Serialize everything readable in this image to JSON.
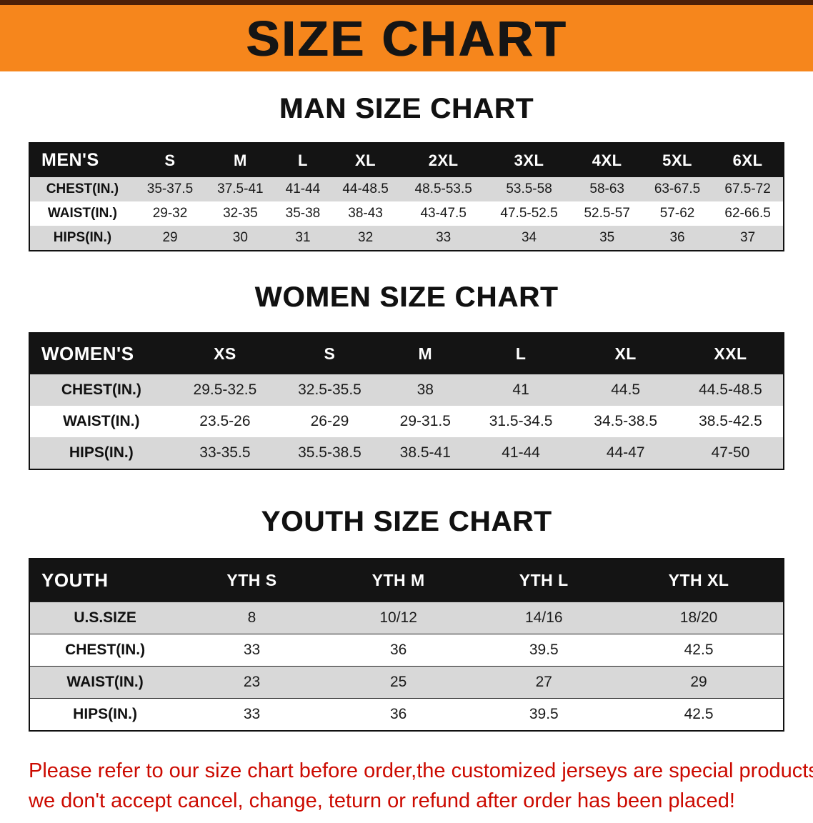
{
  "banner": {
    "title": "SIZE CHART"
  },
  "sections": [
    {
      "heading": "MAN SIZE CHART",
      "table": {
        "header": [
          "MEN'S",
          "S",
          "M",
          "L",
          "XL",
          "2XL",
          "3XL",
          "4XL",
          "5XL",
          "6XL"
        ],
        "rows": [
          [
            "CHEST(IN.)",
            "35-37.5",
            "37.5-41",
            "41-44",
            "44-48.5",
            "48.5-53.5",
            "53.5-58",
            "58-63",
            "63-67.5",
            "67.5-72"
          ],
          [
            "WAIST(IN.)",
            "29-32",
            "32-35",
            "35-38",
            "38-43",
            "43-47.5",
            "47.5-52.5",
            "52.5-57",
            "57-62",
            "62-66.5"
          ],
          [
            "HIPS(IN.)",
            "29",
            "30",
            "31",
            "32",
            "33",
            "34",
            "35",
            "36",
            "37"
          ]
        ]
      }
    },
    {
      "heading": "WOMEN SIZE CHART",
      "table": {
        "header": [
          "WOMEN'S",
          "XS",
          "S",
          "M",
          "L",
          "XL",
          "XXL"
        ],
        "rows": [
          [
            "CHEST(IN.)",
            "29.5-32.5",
            "32.5-35.5",
            "38",
            "41",
            "44.5",
            "44.5-48.5"
          ],
          [
            "WAIST(IN.)",
            "23.5-26",
            "26-29",
            "29-31.5",
            "31.5-34.5",
            "34.5-38.5",
            "38.5-42.5"
          ],
          [
            "HIPS(IN.)",
            "33-35.5",
            "35.5-38.5",
            "38.5-41",
            "41-44",
            "44-47",
            "47-50"
          ]
        ]
      }
    },
    {
      "heading": "YOUTH SIZE CHART",
      "table": {
        "header": [
          "YOUTH",
          "YTH S",
          "YTH M",
          "YTH L",
          "YTH XL"
        ],
        "rows": [
          [
            "U.S.SIZE",
            "8",
            "10/12",
            "14/16",
            "18/20"
          ],
          [
            "CHEST(IN.)",
            "33",
            "36",
            "39.5",
            "42.5"
          ],
          [
            "WAIST(IN.)",
            "23",
            "25",
            "27",
            "29"
          ],
          [
            "HIPS(IN.)",
            "33",
            "36",
            "39.5",
            "42.5"
          ]
        ]
      }
    }
  ],
  "disclaimer": {
    "line1": "Please refer to our size chart before order,the customized jerseys are special products,",
    "line2": "we don't accept cancel, change, teturn or refund after order has been placed!"
  },
  "colors": {
    "banner_bg": "#F6861C",
    "banner_text": "#151515",
    "header_bg": "#141414",
    "header_text": "#FFFFFF",
    "row_shade": "#D8D8D8",
    "row_plain": "#FFFFFF",
    "disclaimer_text": "#CC0A00"
  }
}
